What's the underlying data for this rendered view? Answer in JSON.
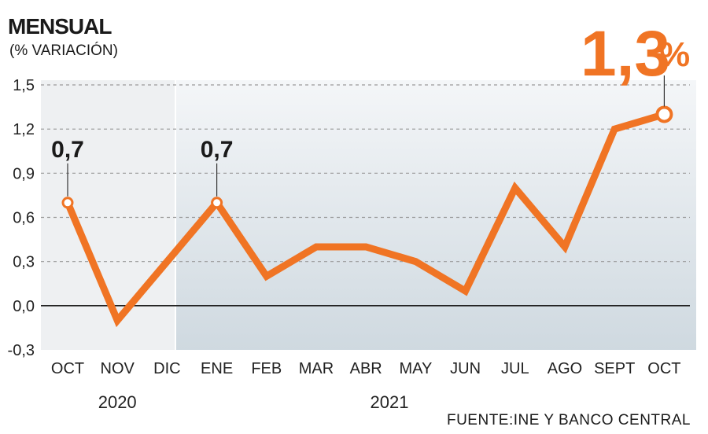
{
  "header": {
    "title": "MENSUAL",
    "subtitle": "(% VARIACIÓN)"
  },
  "source": "FUENTE:INE Y BANCO CENTRAL",
  "headline": {
    "number": "1,3",
    "percent": "%"
  },
  "colors": {
    "line": "#f07424",
    "grid": "#9a9a9a",
    "zero_line": "#222222",
    "panel_2020": "#eef0f2",
    "panel_2021_top": "#f4f6f8",
    "panel_2021_bottom": "#cfd9e0"
  },
  "chart_data": {
    "type": "line",
    "title": "MENSUAL",
    "subtitle": "(% VARIACIÓN)",
    "categories": [
      "OCT",
      "NOV",
      "DIC",
      "ENE",
      "FEB",
      "MAR",
      "ABR",
      "MAY",
      "JUN",
      "JUL",
      "AGO",
      "SEPT",
      "OCT"
    ],
    "series": [
      {
        "values": [
          0.7,
          -0.1,
          0.3,
          0.7,
          0.2,
          0.4,
          0.4,
          0.3,
          0.1,
          0.8,
          0.4,
          1.2,
          1.3
        ]
      }
    ],
    "ylim": [
      -0.3,
      1.5
    ],
    "yticks": [
      -0.3,
      0.0,
      0.3,
      0.6,
      0.9,
      1.2,
      1.5
    ],
    "ytick_labels": [
      "-0,3",
      "0,0",
      "0,3",
      "0,6",
      "0,9",
      "1,2",
      "1,5"
    ],
    "years": [
      {
        "label": "2020",
        "from": 0,
        "to": 2
      },
      {
        "label": "2021",
        "from": 3,
        "to": 12
      }
    ],
    "annotations": [
      {
        "index": 0,
        "label": "0,7"
      },
      {
        "index": 3,
        "label": "0,7"
      },
      {
        "index": 12,
        "label": "1,3%"
      }
    ],
    "grid": true,
    "legend": "none"
  }
}
